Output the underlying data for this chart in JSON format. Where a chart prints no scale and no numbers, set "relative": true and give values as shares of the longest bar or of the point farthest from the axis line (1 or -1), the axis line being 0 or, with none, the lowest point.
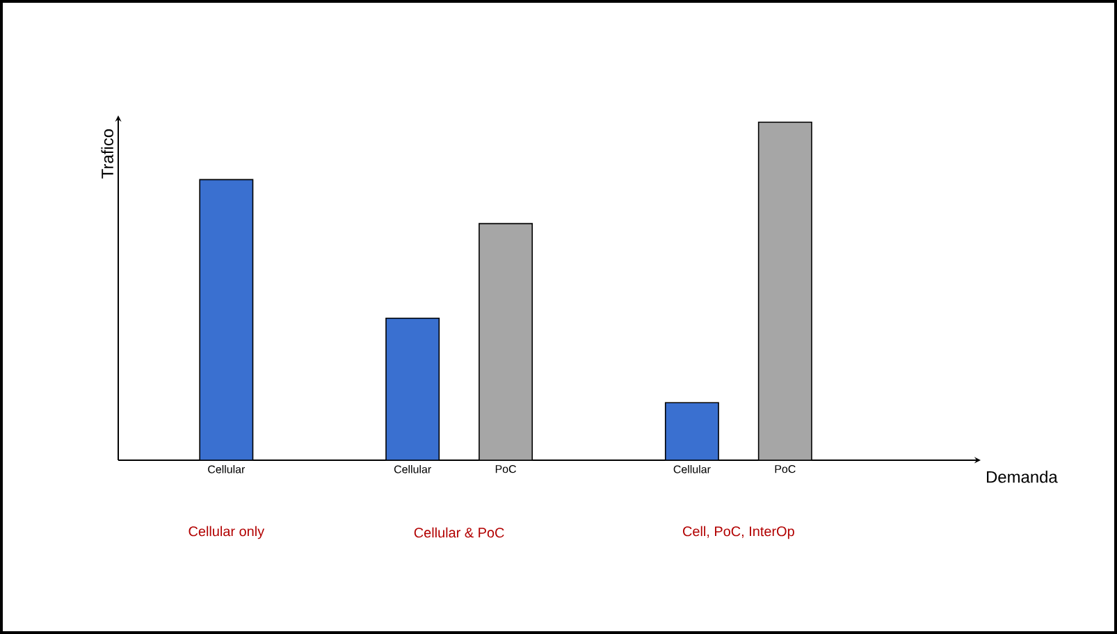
{
  "chart_data": {
    "type": "bar",
    "relative": true,
    "ylabel": "Trafico",
    "categories": [
      "Cellular",
      null,
      "Cellular",
      "PoC",
      null,
      "Cellular",
      "PoC"
    ],
    "values": [
      0.83,
      null,
      0.42,
      0.7,
      null,
      0.17,
      1
    ],
    "colors": [
      "#3a70d0",
      null,
      "#3a70d0",
      "#a6a6a6",
      null,
      "#3a70d0",
      "#a6a6a6"
    ],
    "annotations": [
      "Cellular only",
      "Cellular & PoC",
      "Cell, PoC, InterOp",
      "Demanda"
    ]
  }
}
